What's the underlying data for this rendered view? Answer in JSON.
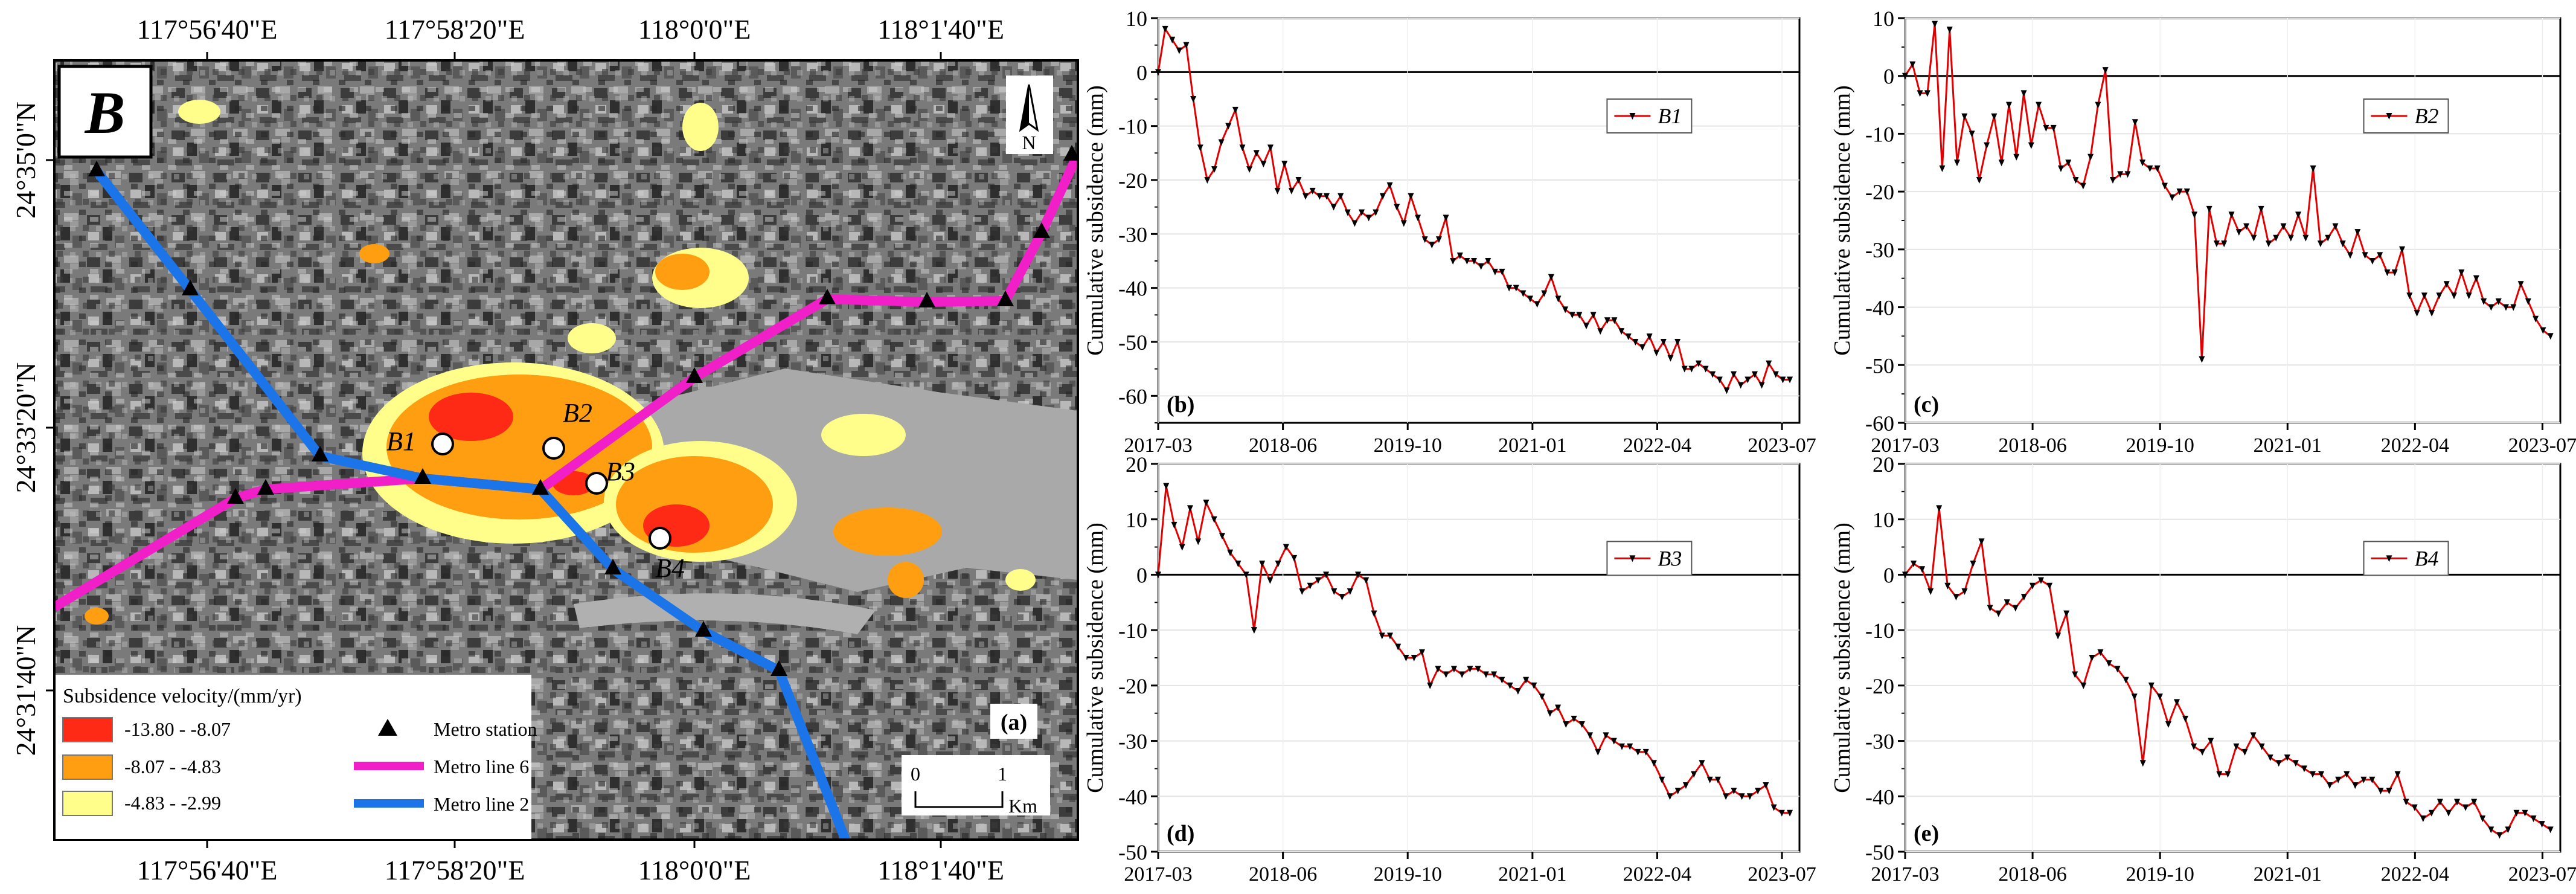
{
  "map": {
    "panel_letter": "B",
    "panel_tag": "(a)",
    "north_label": "N",
    "lon_ticks": [
      "117°56'40\"E",
      "117°58'20\"E",
      "118°0'0\"E",
      "118°1'40\"E"
    ],
    "lat_ticks": [
      "24°35'0\"N",
      "24°33'20\"N",
      "24°31'40\"N"
    ],
    "legend": {
      "title": "Subsidence velocity/(mm/yr)",
      "classes": [
        {
          "label": "-13.80 - -8.07",
          "color": "#ff2a16"
        },
        {
          "label": "-8.07 - -4.83",
          "color": "#ff9e10"
        },
        {
          "label": "-4.83 - -2.99",
          "color": "#fffe8a"
        }
      ],
      "station_label": "Metro station",
      "line6_label": "Metro line 6",
      "line2_label": "Metro line 2",
      "line6_color": "#f01fc8",
      "line2_color": "#1b74e8"
    },
    "scale_bar": {
      "zero": "0",
      "one": "1",
      "unit": "Km"
    },
    "points": [
      "B1",
      "B2",
      "B3",
      "B4"
    ]
  },
  "chart_data": [
    {
      "type": "line",
      "panel": "(b)",
      "series_name": "B1",
      "ylabel": "Cumulative subsidence (mm)",
      "xlabel": "",
      "x_ticks": [
        "2017-03",
        "2018-06",
        "2019-10",
        "2021-01",
        "2022-04",
        "2023-07"
      ],
      "ylim": [
        -65,
        10
      ],
      "y_ticks": [
        10,
        0,
        -10,
        -20,
        -30,
        -40,
        -50,
        -60
      ],
      "line_color": "#e00000",
      "values": [
        0,
        8,
        6,
        4,
        5,
        -5,
        -14,
        -20,
        -18,
        -13,
        -10,
        -7,
        -14,
        -18,
        -15,
        -17,
        -14,
        -22,
        -17,
        -22,
        -20,
        -23,
        -22,
        -23,
        -23,
        -25,
        -23,
        -26,
        -28,
        -26,
        -27,
        -26,
        -23,
        -21,
        -25,
        -28,
        -23,
        -27,
        -31,
        -32,
        -31,
        -27,
        -35,
        -34,
        -35,
        -35,
        -36,
        -35,
        -37,
        -37,
        -40,
        -40,
        -41,
        -42,
        -43,
        -41,
        -38,
        -42,
        -44,
        -45,
        -45,
        -47,
        -45,
        -48,
        -46,
        -46,
        -48,
        -49,
        -50,
        -51,
        -49,
        -52,
        -50,
        -53,
        -50,
        -55,
        -55,
        -54,
        -55,
        -56,
        -57,
        -59,
        -56,
        -58,
        -57,
        -56,
        -58,
        -54,
        -56,
        -57,
        -57
      ]
    },
    {
      "type": "line",
      "panel": "(c)",
      "series_name": "B2",
      "ylabel": "Cumulative subsidence (mm)",
      "xlabel": "",
      "x_ticks": [
        "2017-03",
        "2018-06",
        "2019-10",
        "2021-01",
        "2022-04",
        "2023-07"
      ],
      "ylim": [
        -60,
        10
      ],
      "y_ticks": [
        10,
        0,
        -10,
        -20,
        -30,
        -40,
        -50,
        -60
      ],
      "line_color": "#e00000",
      "values": [
        0,
        2,
        -3,
        -3,
        9,
        -16,
        8,
        -15,
        -7,
        -10,
        -18,
        -12,
        -7,
        -15,
        -5,
        -14,
        -3,
        -12,
        -5,
        -9,
        -9,
        -16,
        -15,
        -18,
        -19,
        -14,
        -5,
        1,
        -18,
        -17,
        -17,
        -8,
        -15,
        -16,
        -16,
        -19,
        -21,
        -20,
        -20,
        -24,
        -49,
        -23,
        -29,
        -29,
        -24,
        -27,
        -26,
        -28,
        -23,
        -29,
        -28,
        -26,
        -28,
        -24,
        -28,
        -16,
        -29,
        -28,
        -26,
        -29,
        -31,
        -27,
        -31,
        -32,
        -31,
        -34,
        -34,
        -30,
        -38,
        -41,
        -38,
        -41,
        -38,
        -36,
        -38,
        -34,
        -38,
        -35,
        -39,
        -40,
        -39,
        -40,
        -40,
        -36,
        -39,
        -42,
        -44,
        -45
      ]
    },
    {
      "type": "line",
      "panel": "(d)",
      "series_name": "B3",
      "ylabel": "Cumulative subsidence (mm)",
      "xlabel": "",
      "x_ticks": [
        "2017-03",
        "2018-06",
        "2019-10",
        "2021-01",
        "2022-04",
        "2023-07"
      ],
      "ylim": [
        -50,
        20
      ],
      "y_ticks": [
        20,
        10,
        0,
        -10,
        -20,
        -30,
        -40,
        -50
      ],
      "line_color": "#e00000",
      "values": [
        0,
        16,
        9,
        5,
        12,
        6,
        13,
        10,
        7,
        4,
        2,
        0,
        -10,
        2,
        -1,
        2,
        5,
        3,
        -3,
        -2,
        -1,
        0,
        -3,
        -4,
        -3,
        0,
        -1,
        -7,
        -11,
        -11,
        -13,
        -15,
        -15,
        -14,
        -20,
        -17,
        -18,
        -17,
        -18,
        -17,
        -17,
        -18,
        -18,
        -19,
        -20,
        -21,
        -19,
        -20,
        -22,
        -25,
        -24,
        -27,
        -26,
        -27,
        -29,
        -32,
        -29,
        -30,
        -31,
        -31,
        -32,
        -32,
        -34,
        -37,
        -40,
        -39,
        -38,
        -36,
        -34,
        -37,
        -37,
        -40,
        -39,
        -40,
        -40,
        -39,
        -38,
        -42,
        -43,
        -43
      ]
    },
    {
      "type": "line",
      "panel": "(e)",
      "series_name": "B4",
      "ylabel": "Cumulative subsidence (mm)",
      "xlabel": "",
      "x_ticks": [
        "2017-03",
        "2018-06",
        "2019-10",
        "2021-01",
        "2022-04",
        "2023-07"
      ],
      "ylim": [
        -50,
        20
      ],
      "y_ticks": [
        20,
        10,
        0,
        -10,
        -20,
        -30,
        -40,
        -50
      ],
      "line_color": "#e00000",
      "values": [
        0,
        2,
        1,
        -3,
        12,
        -2,
        -4,
        -3,
        2,
        6,
        -6,
        -7,
        -5,
        -6,
        -4,
        -2,
        -1,
        -2,
        -11,
        -7,
        -18,
        -20,
        -15,
        -14,
        -16,
        -17,
        -19,
        -22,
        -34,
        -20,
        -22,
        -27,
        -23,
        -26,
        -31,
        -32,
        -30,
        -36,
        -36,
        -31,
        -32,
        -29,
        -31,
        -33,
        -34,
        -33,
        -34,
        -35,
        -36,
        -36,
        -38,
        -37,
        -36,
        -38,
        -37,
        -37,
        -39,
        -39,
        -36,
        -41,
        -42,
        -44,
        -43,
        -41,
        -43,
        -41,
        -42,
        -41,
        -44,
        -46,
        -47,
        -46,
        -43,
        -43,
        -44,
        -45,
        -46
      ]
    }
  ]
}
